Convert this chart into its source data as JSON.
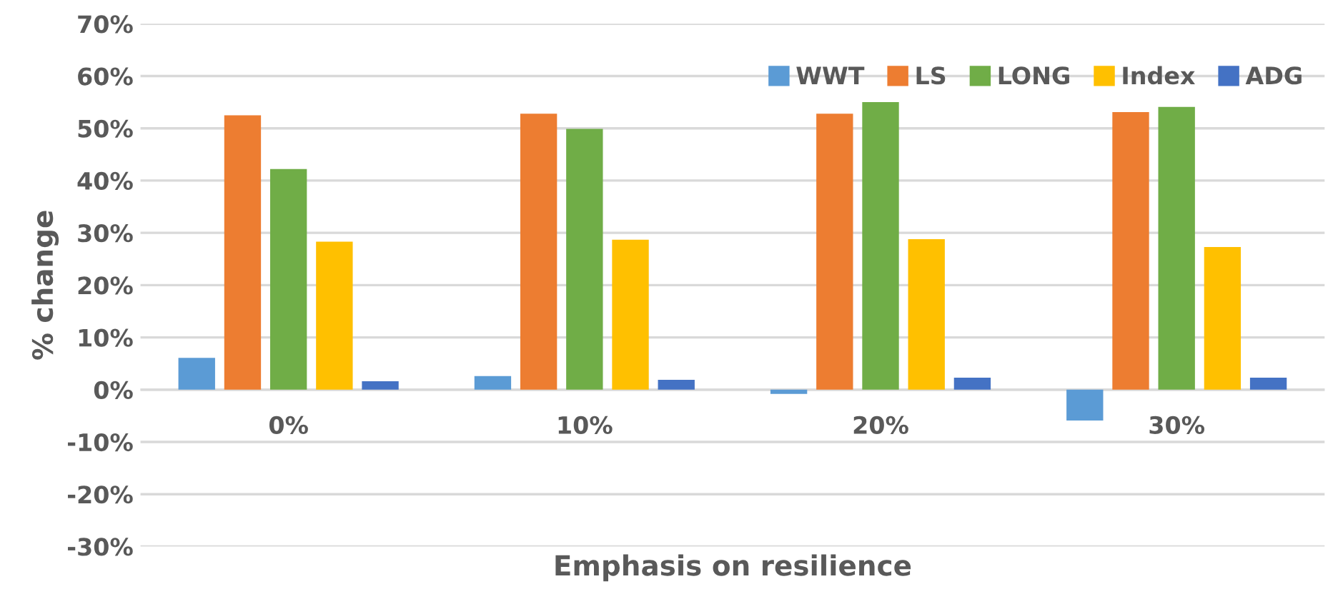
{
  "chart_data": {
    "type": "bar",
    "xlabel": "Emphasis on resilience",
    "ylabel": "% change",
    "categories": [
      "0%",
      "10%",
      "20%",
      "30%"
    ],
    "series": [
      {
        "name": "WWT",
        "color": "#5b9bd5",
        "values": [
          6.1,
          2.6,
          -0.8,
          -5.9
        ]
      },
      {
        "name": "LS",
        "color": "#ed7d31",
        "values": [
          52.5,
          52.8,
          52.8,
          53.1
        ]
      },
      {
        "name": "LONG",
        "color": "#70ad47",
        "values": [
          42.2,
          49.9,
          55.0,
          54.1
        ]
      },
      {
        "name": "Index",
        "color": "#ffc000",
        "values": [
          28.3,
          28.7,
          28.8,
          27.3
        ]
      },
      {
        "name": "ADG",
        "color": "#4472c4",
        "values": [
          1.6,
          1.9,
          2.3,
          2.3
        ]
      }
    ],
    "ylim": [
      -30,
      70
    ],
    "yticks": [
      {
        "value": -30,
        "label": "-30%"
      },
      {
        "value": -20,
        "label": "-20%"
      },
      {
        "value": -10,
        "label": "-10%"
      },
      {
        "value": 0,
        "label": "0%"
      },
      {
        "value": 10,
        "label": "10%"
      },
      {
        "value": 20,
        "label": "20%"
      },
      {
        "value": 30,
        "label": "30%"
      },
      {
        "value": 40,
        "label": "40%"
      },
      {
        "value": 50,
        "label": "50%"
      },
      {
        "value": 60,
        "label": "60%"
      },
      {
        "value": 70,
        "label": "70%"
      }
    ],
    "grid": "y",
    "legend": "top right"
  }
}
